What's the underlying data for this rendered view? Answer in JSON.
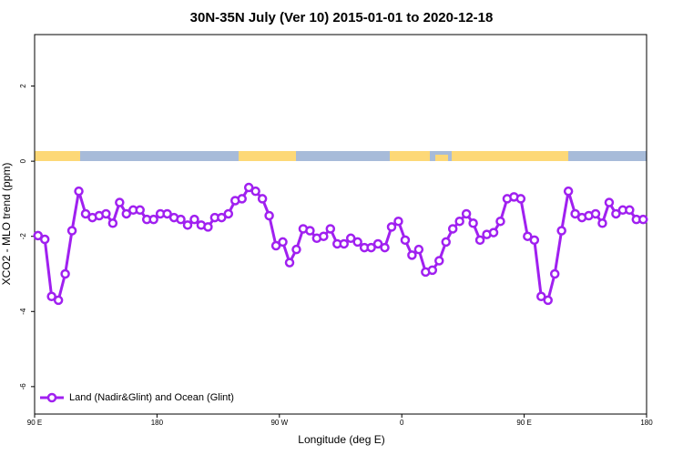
{
  "chart_data": {
    "type": "line",
    "title": "30N-35N July (Ver 10)   2015-01-01 to 2020-12-18",
    "xlabel": "Longitude (deg E)",
    "ylabel": "XCO2 - MLO trend (ppm)",
    "xlim": [
      90,
      540
    ],
    "ylim": [
      -6.73,
      3.37
    ],
    "xticks": [
      {
        "value": 90,
        "label": "90 E"
      },
      180,
      {
        "value": 270,
        "label": "90 W"
      },
      {
        "value": 360,
        "label": "0"
      },
      {
        "value": 450,
        "label": "90 E"
      },
      {
        "value": 540,
        "label": "180"
      }
    ],
    "yticks": [
      -6,
      -4,
      -2,
      0,
      2
    ],
    "legend": "bottomleft",
    "x": [
      92.5,
      97.5,
      102.5,
      107.5,
      112.5,
      117.5,
      122.5,
      127.5,
      132.5,
      137.5,
      142.5,
      147.5,
      152.5,
      157.5,
      162.5,
      167.5,
      172.5,
      177.5,
      182.5,
      187.5,
      192.5,
      197.5,
      202.5,
      207.5,
      212.5,
      217.5,
      222.5,
      227.5,
      232.5,
      237.5,
      242.5,
      247.5,
      252.5,
      257.5,
      262.5,
      267.5,
      272.5,
      277.5,
      282.5,
      287.5,
      292.5,
      297.5,
      302.5,
      307.5,
      312.5,
      317.5,
      322.5,
      327.5,
      332.5,
      337.5,
      342.5,
      347.5,
      352.5,
      357.5,
      362.5,
      367.5,
      372.5,
      377.5,
      382.5,
      387.5,
      392.5,
      397.5,
      402.5,
      407.5,
      412.5,
      417.5,
      422.5,
      427.5,
      432.5,
      437.5,
      442.5,
      447.5,
      452.5,
      457.5,
      462.5,
      467.5,
      472.5,
      477.5,
      482.5,
      487.5,
      492.5,
      497.5,
      502.5,
      507.5,
      512.5,
      517.5,
      522.5,
      527.5,
      532.5,
      537.5
    ],
    "series": [
      {
        "name": "Land (Nadir&Glint) and Ocean (Glint)",
        "color": "#a020f0",
        "values": [
          -1.98,
          -2.08,
          -3.6,
          -3.7,
          -3.0,
          -1.85,
          -0.8,
          -1.4,
          -1.5,
          -1.45,
          -1.4,
          -1.65,
          -1.1,
          -1.4,
          -1.3,
          -1.3,
          -1.55,
          -1.55,
          -1.4,
          -1.4,
          -1.5,
          -1.55,
          -1.7,
          -1.55,
          -1.7,
          -1.75,
          -1.5,
          -1.5,
          -1.4,
          -1.05,
          -1.0,
          -0.7,
          -0.8,
          -1.0,
          -1.45,
          -2.25,
          -2.15,
          -2.7,
          -2.35,
          -1.8,
          -1.85,
          -2.05,
          -2.0,
          -1.8,
          -2.2,
          -2.2,
          -2.05,
          -2.15,
          -2.3,
          -2.3,
          -2.2,
          -2.3,
          -1.75,
          -1.6,
          -2.1,
          -2.5,
          -2.35,
          -2.95,
          -2.9,
          -2.65,
          -2.15,
          -1.8,
          -1.6,
          -1.4,
          -1.65,
          -2.1,
          -1.95,
          -1.9,
          -1.6,
          -1.0,
          -0.95,
          -1.0,
          -2.0,
          -2.1,
          -3.6,
          -3.7,
          -3.0,
          -1.85,
          -0.8,
          -1.4,
          -1.5,
          -1.45,
          -1.4,
          -1.65,
          -1.1,
          -1.4,
          -1.3,
          -1.3,
          -1.55,
          -1.55
        ]
      }
    ]
  }
}
